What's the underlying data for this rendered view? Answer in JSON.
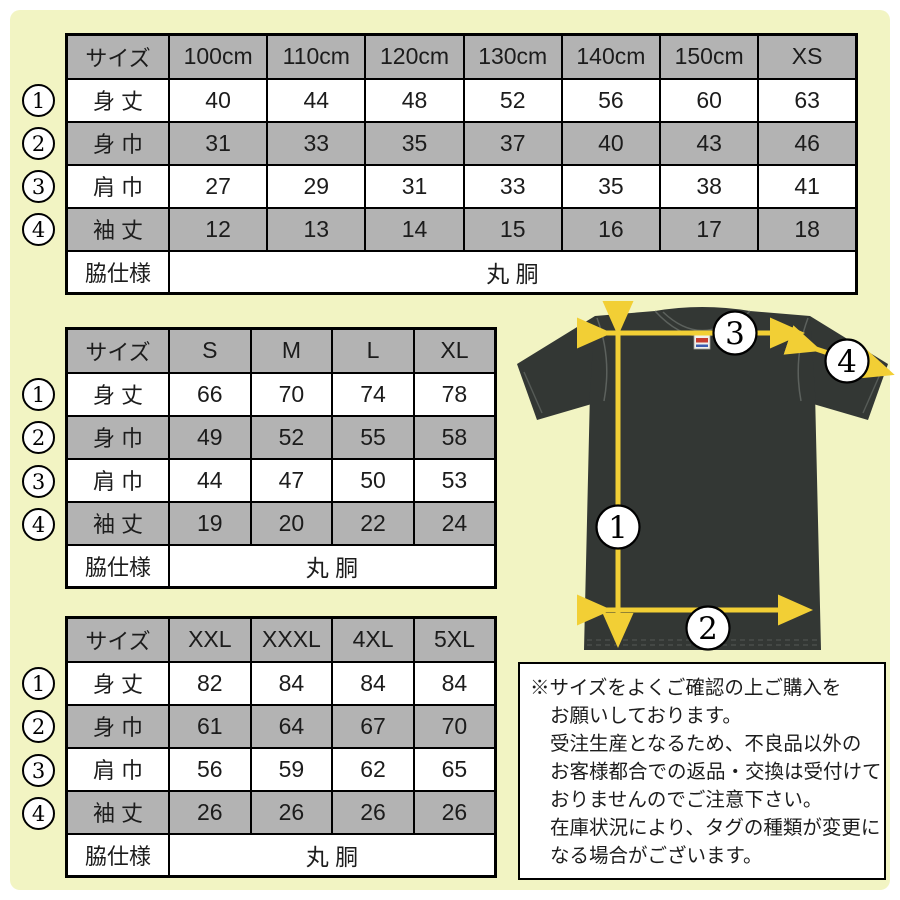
{
  "colors": {
    "background": "#f2f4c3",
    "frame": "#ffffff",
    "cell_gray": "#b3b3b3",
    "cell_white": "#ffffff",
    "table_border": "#000000",
    "shirt_body": "#333734",
    "arrow_yellow": "#f2cf35",
    "text": "#1c1c1c"
  },
  "markers": [
    "1",
    "2",
    "3",
    "4"
  ],
  "tables": [
    {
      "corner_label": "サイズ",
      "columns": [
        "100cm",
        "110cm",
        "120cm",
        "130cm",
        "140cm",
        "150cm",
        "XS"
      ],
      "rows": [
        {
          "label": "身 丈",
          "values": [
            "40",
            "44",
            "48",
            "52",
            "56",
            "60",
            "63"
          ]
        },
        {
          "label": "身 巾",
          "values": [
            "31",
            "33",
            "35",
            "37",
            "40",
            "43",
            "46"
          ]
        },
        {
          "label": "肩 巾",
          "values": [
            "27",
            "29",
            "31",
            "33",
            "35",
            "38",
            "41"
          ]
        },
        {
          "label": "袖 丈",
          "values": [
            "12",
            "13",
            "14",
            "15",
            "16",
            "17",
            "18"
          ]
        }
      ],
      "side_label": "脇仕様",
      "side_value": "丸 胴"
    },
    {
      "corner_label": "サイズ",
      "columns": [
        "S",
        "M",
        "L",
        "XL"
      ],
      "rows": [
        {
          "label": "身 丈",
          "values": [
            "66",
            "70",
            "74",
            "78"
          ]
        },
        {
          "label": "身 巾",
          "values": [
            "49",
            "52",
            "55",
            "58"
          ]
        },
        {
          "label": "肩 巾",
          "values": [
            "44",
            "47",
            "50",
            "53"
          ]
        },
        {
          "label": "袖 丈",
          "values": [
            "19",
            "20",
            "22",
            "24"
          ]
        }
      ],
      "side_label": "脇仕様",
      "side_value": "丸 胴"
    },
    {
      "corner_label": "サイズ",
      "columns": [
        "XXL",
        "XXXL",
        "4XL",
        "5XL"
      ],
      "rows": [
        {
          "label": "身 丈",
          "values": [
            "82",
            "84",
            "84",
            "84"
          ]
        },
        {
          "label": "身 巾",
          "values": [
            "61",
            "64",
            "67",
            "70"
          ]
        },
        {
          "label": "肩 巾",
          "values": [
            "56",
            "59",
            "62",
            "65"
          ]
        },
        {
          "label": "袖 丈",
          "values": [
            "26",
            "26",
            "26",
            "26"
          ]
        }
      ],
      "side_label": "脇仕様",
      "side_value": "丸 胴"
    }
  ],
  "notice": {
    "lines": [
      "※サイズをよくご確認の上ご購入を",
      "お願いしております。",
      "受注生産となるため、不良品以外の",
      "お客様都合での返品・交換は受付けて",
      "おりませんのでご注意下さい。",
      "在庫状況により、タグの種類が変更に",
      "なる場合がございます。"
    ]
  }
}
